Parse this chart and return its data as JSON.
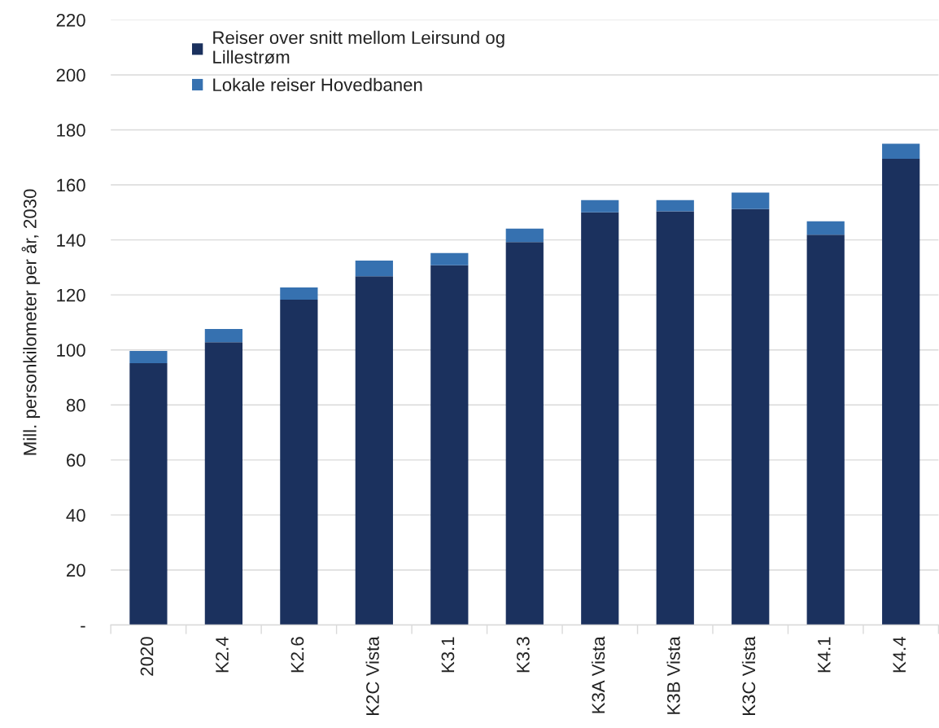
{
  "chart_data": {
    "type": "bar",
    "ylabel": "Mill. personkilometer per år, 2030",
    "categories": [
      "2020",
      "K2.4",
      "K2.6",
      "K2C Vista",
      "K3.1",
      "K3.3",
      "K3A Vista",
      "K3B Vista",
      "K3C Vista",
      "K4.1",
      "K4.4"
    ],
    "series": [
      {
        "name": "Reiser over snitt mellom Leirsund og Lillestrøm",
        "color": "#1b315e",
        "values": [
          95.2,
          102.8,
          118.3,
          126.8,
          130.8,
          139.2,
          150.0,
          150.4,
          151.2,
          141.9,
          169.5
        ]
      },
      {
        "name": "Lokale reiser Hovedbanen",
        "color": "#3671b0",
        "values": [
          4.4,
          4.8,
          4.4,
          5.7,
          4.4,
          4.9,
          4.5,
          4.1,
          6.0,
          4.9,
          5.5
        ]
      }
    ],
    "stacked": true,
    "ylim": [
      0,
      220
    ],
    "yticks": [
      {
        "value": 0,
        "label": "-"
      },
      20,
      40,
      60,
      80,
      100,
      120,
      140,
      160,
      180,
      200,
      220
    ],
    "grid": "y",
    "legend": "top left"
  }
}
